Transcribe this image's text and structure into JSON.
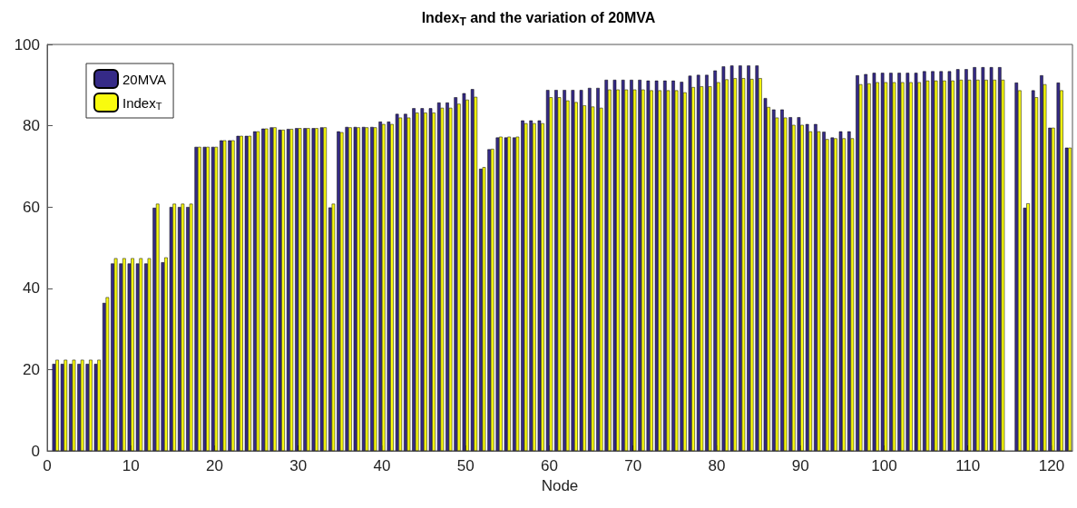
{
  "chart_data": {
    "type": "bar",
    "title": "Index$_{T}$ and the variation of 20MVA",
    "xlabel": "Node",
    "x": [
      1,
      2,
      3,
      4,
      5,
      6,
      7,
      8,
      9,
      10,
      11,
      12,
      13,
      14,
      15,
      16,
      17,
      18,
      19,
      20,
      21,
      22,
      23,
      24,
      25,
      26,
      27,
      28,
      29,
      30,
      31,
      32,
      33,
      34,
      35,
      36,
      37,
      38,
      39,
      40,
      41,
      42,
      43,
      44,
      45,
      46,
      47,
      48,
      49,
      50,
      51,
      52,
      53,
      54,
      55,
      56,
      57,
      58,
      59,
      60,
      61,
      62,
      63,
      64,
      65,
      66,
      67,
      68,
      69,
      70,
      71,
      72,
      73,
      74,
      75,
      76,
      77,
      78,
      79,
      80,
      81,
      82,
      83,
      84,
      85,
      86,
      87,
      88,
      89,
      90,
      91,
      92,
      93,
      94,
      95,
      96,
      97,
      98,
      99,
      100,
      101,
      102,
      103,
      104,
      105,
      106,
      107,
      108,
      109,
      110,
      111,
      112,
      113,
      114,
      115,
      116,
      117,
      118,
      119,
      120,
      121,
      122
    ],
    "series": [
      {
        "name": "20MVA",
        "color": "#352a87",
        "values": [
          21.4,
          21.4,
          21.4,
          21.4,
          21.4,
          21.4,
          36.4,
          46.1,
          46.1,
          46.1,
          46.1,
          46.1,
          59.8,
          46.4,
          60,
          60,
          60,
          74.8,
          74.8,
          74.8,
          76.4,
          76.4,
          77.5,
          77.5,
          78.6,
          79.3,
          79.6,
          79,
          79.2,
          79.4,
          79.4,
          79.4,
          79.6,
          59.9,
          78.6,
          79.7,
          79.7,
          79.7,
          79.7,
          81,
          81,
          82.9,
          82.9,
          84.3,
          84.3,
          84.3,
          85.7,
          85.7,
          87,
          88,
          89,
          69.4,
          74.2,
          77.1,
          77.1,
          77.1,
          81.3,
          81.3,
          81.3,
          88.8,
          88.8,
          88.8,
          88.8,
          88.8,
          89.3,
          89.3,
          91.3,
          91.3,
          91.3,
          91.3,
          91.3,
          91.1,
          91.1,
          91.1,
          91.1,
          90.8,
          92.3,
          92.5,
          92.5,
          93.6,
          94.6,
          94.8,
          94.8,
          94.8,
          94.8,
          86.8,
          84,
          84,
          82.1,
          82.1,
          80.4,
          80.4,
          78.5,
          77.1,
          78.6,
          78.6,
          92.4,
          92.7,
          93,
          93,
          93,
          93,
          93,
          93,
          93.4,
          93.4,
          93.4,
          93.4,
          93.9,
          93.9,
          94.4,
          94.4,
          94.4,
          94.4,
          null,
          90.6,
          59.8,
          88.7,
          92.4,
          79.5,
          90.6,
          74.6
        ]
      },
      {
        "name": "Index$_{T}$",
        "color": "#f9fb0e",
        "values": [
          22.4,
          22.4,
          22.4,
          22.4,
          22.4,
          22.4,
          37.8,
          47.4,
          47.4,
          47.4,
          47.4,
          47.4,
          60.8,
          47.6,
          60.8,
          60.8,
          60.8,
          74.8,
          74.8,
          74.8,
          76.4,
          76.4,
          77.5,
          77.5,
          78.6,
          79.3,
          79.6,
          79,
          79.2,
          79.4,
          79.4,
          79.4,
          79.6,
          60.8,
          78.4,
          79.6,
          79.6,
          79.6,
          79.6,
          80.4,
          80.4,
          82,
          82,
          83.2,
          83.2,
          83.2,
          84.4,
          84.4,
          85.4,
          86.4,
          87.1,
          69.8,
          74.3,
          77.3,
          77.3,
          77.3,
          80.6,
          80.6,
          80.6,
          87,
          87,
          86.2,
          85.8,
          85,
          84.7,
          84.4,
          88.9,
          88.9,
          88.9,
          88.9,
          88.9,
          88.7,
          88.7,
          88.7,
          88.7,
          88.2,
          89.5,
          89.7,
          89.7,
          90.7,
          91.4,
          91.7,
          91.7,
          91.5,
          91.7,
          84.6,
          82,
          82,
          80.2,
          80.2,
          78.6,
          78.6,
          76.7,
          76.9,
          76.9,
          76.9,
          90.2,
          90.4,
          90.7,
          90.7,
          90.7,
          90.7,
          90.7,
          90.7,
          91.1,
          91.1,
          91.1,
          91.1,
          91.3,
          91.3,
          91.3,
          91.3,
          91.3,
          91.3,
          null,
          88.7,
          60.9,
          87,
          90.2,
          79.5,
          88.7,
          74.6
        ]
      }
    ],
    "xlim": [
      0,
      122.5
    ],
    "xticks": [
      0,
      10,
      20,
      30,
      40,
      50,
      60,
      70,
      80,
      90,
      100,
      110,
      120
    ],
    "ylim": [
      0,
      100
    ],
    "yticks": [
      0,
      20,
      40,
      60,
      80,
      100
    ],
    "grid": false,
    "legend": "top left"
  }
}
